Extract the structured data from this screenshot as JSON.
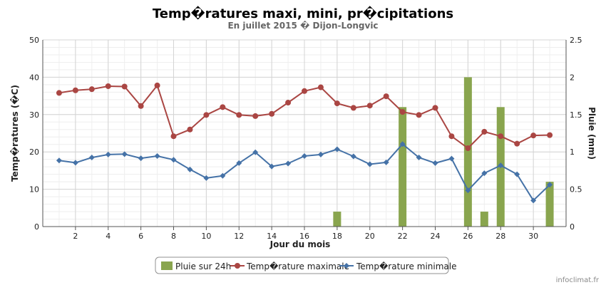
{
  "chart_data": {
    "type": "bar+line",
    "title": "Temp�ratures maxi, mini, pr�cipitations",
    "subtitle": "En juillet 2015 � Dijon-Longvic",
    "xlabel": "Jour du mois",
    "ylabel_left": "Temp�ratures (�C)",
    "ylabel_right": "Pluie (mm)",
    "xlim": [
      0,
      32
    ],
    "ylim_left": [
      0,
      50
    ],
    "ylim_right": [
      0,
      2.5
    ],
    "x_ticks": [
      2,
      4,
      6,
      8,
      10,
      12,
      14,
      16,
      18,
      20,
      22,
      24,
      26,
      28,
      30
    ],
    "y_ticks_left": [
      0,
      10,
      20,
      30,
      40,
      50
    ],
    "y_ticks_right": [
      "0",
      "0.5",
      "1",
      "1.5",
      "2",
      "2.5"
    ],
    "grid": true,
    "legend_position": "bottom-center",
    "days": [
      1,
      2,
      3,
      4,
      5,
      6,
      7,
      8,
      9,
      10,
      11,
      12,
      13,
      14,
      15,
      16,
      17,
      18,
      19,
      20,
      21,
      22,
      23,
      24,
      25,
      26,
      27,
      28,
      29,
      30,
      31
    ],
    "series": [
      {
        "name": "Pluie sur 24h",
        "kind": "bar",
        "axis": "right",
        "color": "#89a54e",
        "values": [
          0,
          0,
          0,
          0,
          0,
          0,
          0,
          0,
          0,
          0,
          0,
          0,
          0,
          0,
          0,
          0,
          0,
          0.2,
          0,
          0,
          0,
          1.6,
          0,
          0,
          0,
          2.0,
          0.2,
          1.6,
          0,
          0,
          0.6
        ]
      },
      {
        "name": "Temp�rature maximale",
        "kind": "line",
        "axis": "left",
        "color": "#aa4643",
        "marker": "circle",
        "values": [
          35.8,
          36.5,
          36.8,
          37.6,
          37.5,
          32.3,
          37.8,
          24.2,
          26.0,
          29.9,
          32.0,
          29.9,
          29.6,
          30.2,
          33.2,
          36.3,
          37.3,
          33.0,
          31.8,
          32.4,
          34.9,
          30.7,
          29.9,
          31.8,
          24.2,
          21.0,
          25.4,
          24.2,
          22.2,
          24.4,
          24.5
        ]
      },
      {
        "name": "Temp�rature minimale",
        "kind": "line",
        "axis": "left",
        "color": "#4572a7",
        "marker": "diamond",
        "values": [
          17.7,
          17.1,
          18.5,
          19.3,
          19.4,
          18.3,
          18.9,
          17.9,
          15.3,
          13.0,
          13.6,
          17.0,
          19.9,
          16.1,
          16.9,
          18.9,
          19.3,
          20.7,
          18.8,
          16.7,
          17.2,
          22.1,
          18.5,
          17.0,
          18.2,
          9.7,
          14.3,
          16.4,
          14.0,
          7.0,
          11.2
        ]
      }
    ]
  },
  "credit": "infoclimat.fr"
}
